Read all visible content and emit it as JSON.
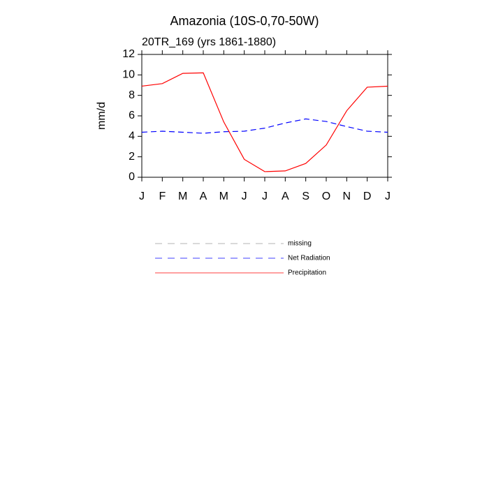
{
  "chart_data": {
    "type": "line",
    "title": "Amazonia (10S-0,70-50W)",
    "subtitle": "20TR_169 (yrs 1861-1880)",
    "y_label": "mm/d",
    "categories": [
      "J",
      "F",
      "M",
      "A",
      "M",
      "J",
      "J",
      "A",
      "S",
      "O",
      "N",
      "D",
      "J"
    ],
    "series": [
      {
        "name": "missing",
        "color": "#999999",
        "dash": true,
        "values": [
          null,
          null,
          null,
          null,
          null,
          null,
          null,
          null,
          null,
          null,
          null,
          null,
          null
        ]
      },
      {
        "name": "Net Radiation",
        "color": "#0000ff",
        "dash": true,
        "values": [
          4.4,
          4.5,
          4.4,
          4.3,
          4.45,
          4.5,
          4.8,
          5.3,
          5.7,
          5.45,
          4.95,
          4.5,
          4.4
        ]
      },
      {
        "name": "Precipitation",
        "color": "#ff0000",
        "dash": false,
        "values": [
          8.9,
          9.15,
          10.15,
          10.2,
          5.4,
          1.75,
          0.55,
          0.62,
          1.35,
          3.15,
          6.5,
          8.8,
          8.9
        ]
      }
    ],
    "ylim": [
      0,
      12
    ],
    "yticks": [
      0,
      2,
      4,
      6,
      8,
      10,
      12
    ]
  }
}
